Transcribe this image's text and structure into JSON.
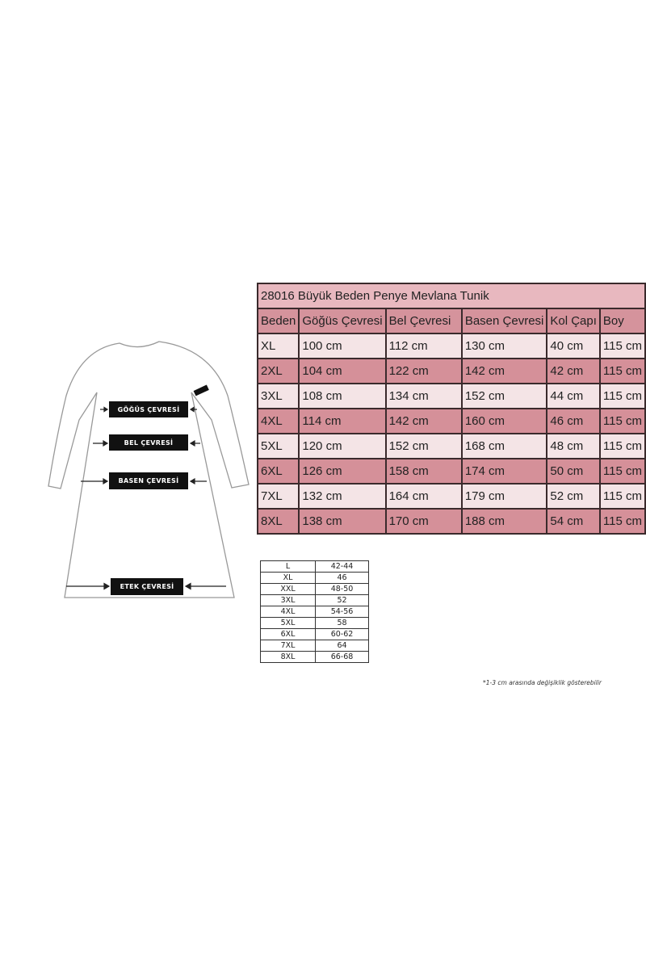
{
  "diagram": {
    "labels": {
      "chest": "GÖĞÜS ÇEVRESİ",
      "waist": "BEL ÇEVRESİ",
      "hip": "BASEN ÇEVRESİ",
      "hem": "ETEK ÇEVRESİ"
    }
  },
  "size_table": {
    "title": "28016 Büyük Beden Penye Mevlana Tunik",
    "headers": [
      "Beden",
      "Göğüs Çevresi",
      "Bel Çevresi",
      "Basen Çevresi",
      "Kol Çapı",
      "Boy"
    ],
    "rows": [
      [
        "XL",
        "100 cm",
        "112 cm",
        "130 cm",
        "40 cm",
        "115 cm"
      ],
      [
        "2XL",
        "104 cm",
        "122 cm",
        "142 cm",
        "42 cm",
        "115 cm"
      ],
      [
        "3XL",
        "108 cm",
        "134 cm",
        "152 cm",
        "44 cm",
        "115 cm"
      ],
      [
        "4XL",
        "114 cm",
        "142 cm",
        "160 cm",
        "46 cm",
        "115 cm"
      ],
      [
        "5XL",
        "120 cm",
        "152 cm",
        "168 cm",
        "48 cm",
        "115 cm"
      ],
      [
        "6XL",
        "126 cm",
        "158 cm",
        "174 cm",
        "50 cm",
        "115 cm"
      ],
      [
        "7XL",
        "132 cm",
        "164 cm",
        "179 cm",
        "52 cm",
        "115 cm"
      ],
      [
        "8XL",
        "138 cm",
        "170 cm",
        "188 cm",
        "54 cm",
        "115 cm"
      ]
    ],
    "colors": {
      "title": "#e8b8bf",
      "header": "#d5939c",
      "light_row": "#f4e4e6",
      "dark_row": "#d59099"
    }
  },
  "conversion_table": {
    "rows": [
      [
        "L",
        "42-44"
      ],
      [
        "XL",
        "46"
      ],
      [
        "XXL",
        "48-50"
      ],
      [
        "3XL",
        "52"
      ],
      [
        "4XL",
        "54-56"
      ],
      [
        "5XL",
        "58"
      ],
      [
        "6XL",
        "60-62"
      ],
      [
        "7XL",
        "64"
      ],
      [
        "8XL",
        "66-68"
      ]
    ]
  },
  "footnote": "*1-3 cm arasında değişiklik gösterebilir"
}
